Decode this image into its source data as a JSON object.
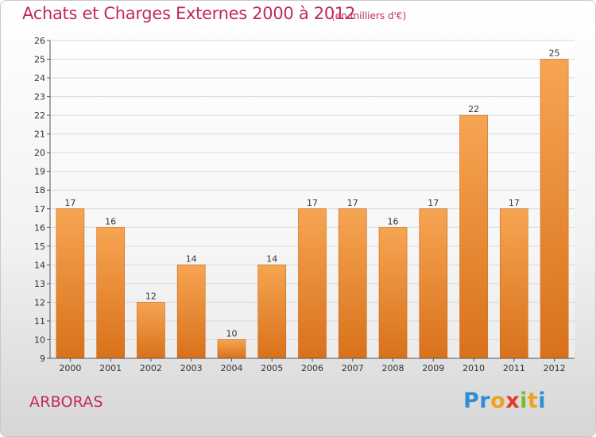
{
  "title": "Achats et Charges Externes 2000 à 2012",
  "subtitle": "(en milliers d'€)",
  "commune": "ARBORAS",
  "logo": {
    "letters": [
      {
        "ch": "P",
        "color": "#2f8fd6"
      },
      {
        "ch": "r",
        "color": "#2f8fd6"
      },
      {
        "ch": "o",
        "color": "#f0a21e"
      },
      {
        "ch": "x",
        "color": "#e13b2b"
      },
      {
        "ch": "i",
        "color": "#7ab929"
      },
      {
        "ch": "t",
        "color": "#f0a21e"
      },
      {
        "ch": "i",
        "color": "#2f8fd6"
      }
    ]
  },
  "colors": {
    "bar_top": "#f6a552",
    "bar_bottom": "#d9711b",
    "bar_edge": "#c86614",
    "title": "#c12a5c",
    "grid": "#d9d9d9"
  },
  "chart_data": {
    "type": "bar",
    "categories": [
      "2000",
      "2001",
      "2002",
      "2003",
      "2004",
      "2005",
      "2006",
      "2007",
      "2008",
      "2009",
      "2010",
      "2011",
      "2012"
    ],
    "values": [
      17,
      16,
      12,
      14,
      10,
      14,
      17,
      17,
      16,
      17,
      22,
      17,
      25
    ],
    "title": "Achats et Charges Externes 2000 à 2012",
    "xlabel": "",
    "ylabel": "",
    "ylim": [
      9,
      26
    ],
    "yticks": [
      9,
      10,
      11,
      12,
      13,
      14,
      15,
      16,
      17,
      18,
      19,
      20,
      21,
      22,
      23,
      24,
      25,
      26
    ],
    "grid": true,
    "value_labels": true
  }
}
